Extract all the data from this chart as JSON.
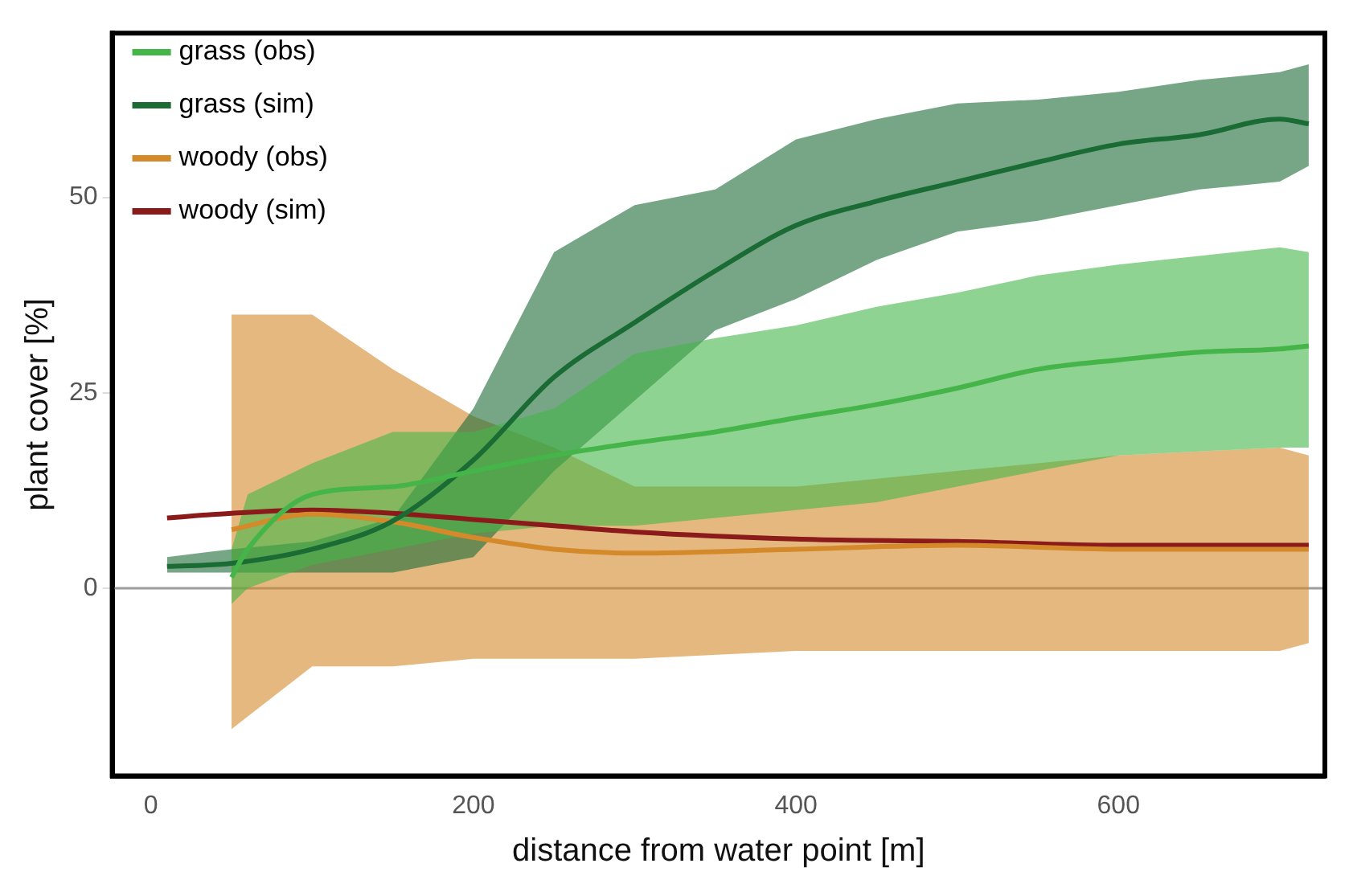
{
  "chart_data": {
    "type": "line",
    "xlabel": "distance from water point [m]",
    "ylabel": "plant cover [%]",
    "xlim": [
      -24,
      728
    ],
    "ylim": [
      -24,
      71
    ],
    "xticks": [
      0,
      200,
      400,
      600
    ],
    "yticks": [
      0,
      25,
      50
    ],
    "grid": false,
    "legend": "top left",
    "marker": "none",
    "line_style": "solid",
    "ref_lines": [
      {
        "axis": "y",
        "value": 0,
        "color": "#9e9e9e"
      }
    ],
    "series": [
      {
        "name": "grass (obs)",
        "color": "#45b549",
        "x": [
          50,
          60,
          100,
          150,
          200,
          250,
          300,
          350,
          400,
          450,
          500,
          550,
          600,
          650,
          700,
          718
        ],
        "values": [
          1.4,
          5,
          12,
          13,
          15,
          17,
          18.6,
          20,
          21.8,
          23.5,
          25.6,
          28,
          29.2,
          30.2,
          30.6,
          31
        ],
        "lower": [
          -2,
          0,
          3,
          5,
          7,
          8,
          8,
          9,
          10,
          11,
          13,
          15,
          17,
          17.5,
          18,
          18
        ],
        "upper": [
          5,
          12,
          16,
          20,
          20,
          23,
          30,
          32,
          33.6,
          36,
          37.8,
          40,
          41.4,
          42.5,
          43.6,
          43
        ]
      },
      {
        "name": "grass (sim)",
        "color": "#1b6b35",
        "x": [
          10,
          50,
          100,
          150,
          200,
          250,
          300,
          350,
          400,
          450,
          500,
          550,
          600,
          650,
          700,
          718
        ],
        "values": [
          2.8,
          3.2,
          5,
          8.6,
          16.4,
          27,
          34,
          40.6,
          46.4,
          49.5,
          52,
          54.5,
          56.8,
          58,
          60,
          59.4
        ],
        "lower": [
          2,
          2,
          2,
          2,
          4,
          15,
          24,
          33,
          37,
          42,
          45.6,
          47,
          49,
          51,
          52,
          54
        ],
        "upper": [
          4,
          5,
          6,
          9,
          23,
          43,
          49,
          51,
          57.4,
          60,
          62,
          62.5,
          63.5,
          65,
          66,
          67
        ]
      },
      {
        "name": "woody (obs)",
        "color": "#d4892a",
        "x": [
          50,
          100,
          150,
          200,
          250,
          300,
          400,
          500,
          600,
          700,
          718
        ],
        "values": [
          7.5,
          9.5,
          8.5,
          6.5,
          5,
          4.5,
          5,
          5.5,
          5,
          5,
          5
        ],
        "lower": [
          -18,
          -10,
          -10,
          -9,
          -9,
          -9,
          -8,
          -8,
          -8,
          -8,
          -7
        ],
        "upper": [
          35,
          35,
          28,
          22,
          18,
          13,
          13,
          15,
          17,
          18,
          17
        ]
      },
      {
        "name": "woody (sim)",
        "color": "#8b1a1a",
        "x": [
          10,
          50,
          100,
          150,
          200,
          250,
          300,
          400,
          500,
          600,
          700,
          718
        ],
        "values": [
          9,
          9.6,
          10,
          9.6,
          8.8,
          8,
          7.2,
          6.3,
          6,
          5.5,
          5.5,
          5.5
        ]
      }
    ]
  }
}
